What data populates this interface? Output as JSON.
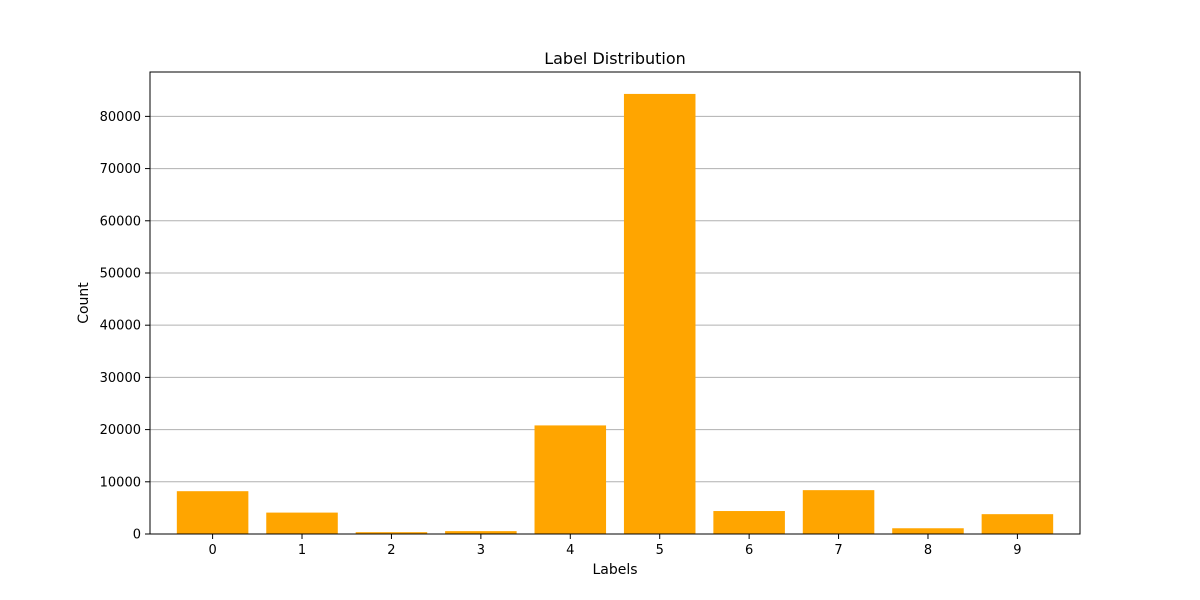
{
  "chart_data": {
    "type": "bar",
    "title": "Label Distribution",
    "xlabel": "Labels",
    "ylabel": "Count",
    "categories": [
      "0",
      "1",
      "2",
      "3",
      "4",
      "5",
      "6",
      "7",
      "8",
      "9"
    ],
    "values": [
      8200,
      4100,
      350,
      550,
      20800,
      84300,
      4400,
      8400,
      1100,
      3800
    ],
    "ylim": [
      0,
      88500
    ],
    "yticks": [
      0,
      10000,
      20000,
      30000,
      40000,
      50000,
      60000,
      70000,
      80000
    ],
    "ytick_labels": [
      "0",
      "10000",
      "20000",
      "30000",
      "40000",
      "50000",
      "60000",
      "70000",
      "80000"
    ],
    "grid": "horizontal",
    "bar_color": "#ffa500",
    "grid_color": "#b0b0b0"
  }
}
